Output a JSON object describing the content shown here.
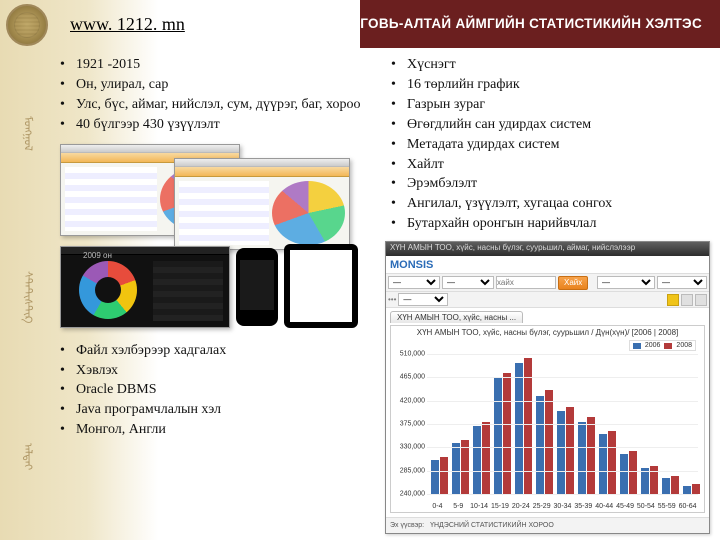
{
  "page": {
    "url_text": "www. 1212. mn",
    "url_href": "http://www.1212.mn",
    "header_right": "ГОВЬ-АЛТАЙ АЙМГИЙН СТАТИСТИКИЙН ХЭЛТЭС",
    "header_band_color": "#6b1f1f",
    "bg_gradient_from": "#e8dbb3"
  },
  "left": {
    "top_list": [
      "1921 -2015",
      "Он, улирал, сар",
      "Улс, бүс, аймаг, нийслэл, сум, дүүрэг, баг, хороо",
      "40 бүлгээр 430 үзүүлэлт"
    ],
    "bottom_list": [
      "Файл хэлбэрээр хадгалах",
      "Хэвлэх",
      "Oracle DBMS",
      "Java програмчлалын хэл",
      "Монгол, Англи"
    ]
  },
  "right": {
    "list": [
      "Хүснэгт",
      "16 төрлийн график",
      "Газрын зураг",
      "Өгөгдлийн сан удирдах систем",
      "Метадата удирдах систем",
      "Хайлт",
      "Эрэмбэлэлт",
      "Ангилал, үзүүлэлт, хугацаа сонгох",
      "Бутархайн оронгын нарийвчлал"
    ]
  },
  "thumb_pie": {
    "colors": [
      "#f4d03f",
      "#58d68d",
      "#5dade2",
      "#ec7063",
      "#af7ac5"
    ]
  },
  "dashboard": {
    "window_title": "ХҮН АМЫН ТОО, хүйс, насны бүлэг, суурьшил, аймаг, нийслэлээр",
    "brand": "MONSIS",
    "brand_color": "#2a6bb7",
    "search_placeholder": "хайх",
    "go_button": "Хайх",
    "sheet_tab": "ХҮН АМЫН ТОО, хүйс, насны ...",
    "chart_title": "ХҮН АМЫН ТОО, хүйс, насны бүлэг, суурьшил / Дүн(хүн)/ [2006 | 2008]",
    "legend": [
      "2006",
      "2008"
    ],
    "series_colors": {
      "s2006": "#3a6fb0",
      "s2008": "#b33a3a"
    },
    "y_axis": {
      "min": 240000,
      "max": 510000,
      "ticks": [
        240000,
        285000,
        330000,
        375000,
        420000,
        465000,
        510000
      ]
    },
    "categories": [
      "0-4",
      "5-9",
      "10-14",
      "15-19",
      "20-24",
      "25-29",
      "30-34",
      "35-39",
      "40-44",
      "45-49",
      "50-54",
      "55-59",
      "60-64"
    ],
    "data": {
      "s2006": [
        305430,
        338000,
        372000,
        465000,
        492000,
        430000,
        400000,
        380000,
        355000,
        318000,
        290000,
        270000,
        256000
      ],
      "s2008": [
        312000,
        344000,
        380000,
        474000,
        502000,
        440000,
        408000,
        388000,
        362000,
        324000,
        294000,
        274000,
        260000
      ]
    },
    "footer_source_label": "Эх үүсвэр:",
    "footer_source_value": "ҮНДЭСНИЙ СТАТИСТИКИЙН ХОРОО"
  }
}
